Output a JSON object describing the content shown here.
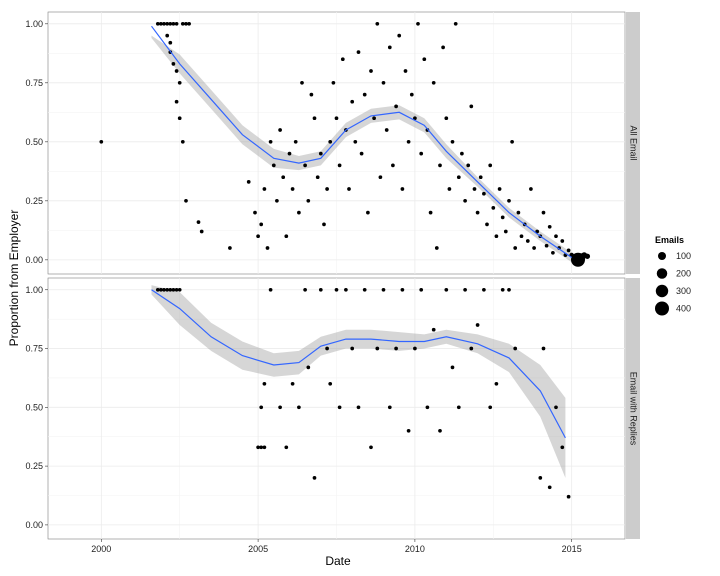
{
  "chart_data": {
    "type": "scatter",
    "xlabel": "Date",
    "ylabel": "Proportion from Employer",
    "xlim": [
      1998.3,
      2016.7
    ],
    "ylim": [
      -0.06,
      1.05
    ],
    "x_ticks": [
      2000,
      2005,
      2010,
      2015
    ],
    "x_tick_labels": [
      "2000",
      "2005",
      "2010",
      "2015"
    ],
    "y_ticks": [
      0,
      0.25,
      0.5,
      0.75,
      1.0
    ],
    "y_tick_labels": [
      "0.00",
      "0.25",
      "0.50",
      "0.75",
      "1.00"
    ],
    "grid": true,
    "colors": {
      "smooth_line": "#3366ff",
      "ribbon": "#999999",
      "point": "#000000",
      "panel_bg": "#ffffff",
      "grid": "#ebebeb",
      "strip_bg": "#cccccc"
    },
    "legend": {
      "title": "Emails",
      "position": "right",
      "entries": [
        {
          "label": "100",
          "value": 100
        },
        {
          "label": "200",
          "value": 200
        },
        {
          "label": "300",
          "value": 300
        },
        {
          "label": "400",
          "value": 400
        }
      ]
    },
    "panels": [
      {
        "strip": "All Email",
        "smooth": {
          "x": [
            2001.6,
            2002.5,
            2003.5,
            2004.5,
            2005.5,
            2006.3,
            2007.0,
            2007.8,
            2008.6,
            2009.5,
            2010.3,
            2011.0,
            2012.0,
            2013.0,
            2014.0,
            2015.0
          ],
          "y": [
            0.99,
            0.83,
            0.68,
            0.53,
            0.43,
            0.41,
            0.43,
            0.55,
            0.61,
            0.625,
            0.57,
            0.46,
            0.33,
            0.2,
            0.1,
            0.01
          ],
          "lower": [
            0.94,
            0.79,
            0.64,
            0.49,
            0.39,
            0.38,
            0.4,
            0.52,
            0.58,
            0.595,
            0.54,
            0.43,
            0.31,
            0.18,
            0.08,
            -0.01
          ],
          "upper": [
            0.95,
            0.87,
            0.72,
            0.57,
            0.47,
            0.44,
            0.46,
            0.58,
            0.64,
            0.655,
            0.6,
            0.49,
            0.35,
            0.22,
            0.12,
            0.03
          ]
        },
        "points": [
          [
            2000.0,
            0.5,
            8
          ],
          [
            2001.8,
            1.0,
            8
          ],
          [
            2001.9,
            1.0,
            8
          ],
          [
            2002.0,
            1.0,
            8
          ],
          [
            2002.1,
            1.0,
            8
          ],
          [
            2002.2,
            1.0,
            8
          ],
          [
            2002.3,
            1.0,
            8
          ],
          [
            2002.4,
            1.0,
            8
          ],
          [
            2002.6,
            1.0,
            8
          ],
          [
            2002.7,
            1.0,
            8
          ],
          [
            2002.8,
            1.0,
            8
          ],
          [
            2002.1,
            0.95,
            8
          ],
          [
            2002.2,
            0.88,
            8
          ],
          [
            2002.3,
            0.83,
            8
          ],
          [
            2002.4,
            0.8,
            8
          ],
          [
            2002.5,
            0.75,
            8
          ],
          [
            2002.2,
            0.92,
            8
          ],
          [
            2002.4,
            0.67,
            8
          ],
          [
            2002.5,
            0.6,
            8
          ],
          [
            2002.6,
            0.5,
            8
          ],
          [
            2002.7,
            0.25,
            8
          ],
          [
            2003.1,
            0.16,
            8
          ],
          [
            2003.2,
            0.12,
            8
          ],
          [
            2004.1,
            0.05,
            8
          ],
          [
            2004.7,
            0.33,
            8
          ],
          [
            2004.9,
            0.2,
            8
          ],
          [
            2005.0,
            0.1,
            8
          ],
          [
            2005.1,
            0.15,
            8
          ],
          [
            2005.2,
            0.3,
            8
          ],
          [
            2005.3,
            0.05,
            8
          ],
          [
            2005.4,
            0.5,
            8
          ],
          [
            2005.5,
            0.4,
            8
          ],
          [
            2005.6,
            0.25,
            8
          ],
          [
            2005.7,
            0.55,
            8
          ],
          [
            2005.8,
            0.35,
            8
          ],
          [
            2005.9,
            0.1,
            8
          ],
          [
            2006.0,
            0.45,
            8
          ],
          [
            2006.1,
            0.3,
            8
          ],
          [
            2006.2,
            0.5,
            8
          ],
          [
            2006.3,
            0.2,
            8
          ],
          [
            2006.4,
            0.75,
            8
          ],
          [
            2006.5,
            0.4,
            8
          ],
          [
            2006.6,
            0.25,
            8
          ],
          [
            2006.7,
            0.7,
            8
          ],
          [
            2006.8,
            0.6,
            8
          ],
          [
            2006.9,
            0.35,
            8
          ],
          [
            2007.0,
            0.45,
            8
          ],
          [
            2007.1,
            0.15,
            8
          ],
          [
            2007.2,
            0.3,
            8
          ],
          [
            2007.3,
            0.5,
            8
          ],
          [
            2007.4,
            0.75,
            8
          ],
          [
            2007.5,
            0.6,
            8
          ],
          [
            2007.6,
            0.4,
            8
          ],
          [
            2007.7,
            0.85,
            8
          ],
          [
            2007.8,
            0.55,
            8
          ],
          [
            2007.9,
            0.3,
            8
          ],
          [
            2008.0,
            0.67,
            8
          ],
          [
            2008.1,
            0.5,
            8
          ],
          [
            2008.2,
            0.88,
            8
          ],
          [
            2008.3,
            0.45,
            8
          ],
          [
            2008.4,
            0.7,
            8
          ],
          [
            2008.5,
            0.2,
            8
          ],
          [
            2008.6,
            0.8,
            8
          ],
          [
            2008.7,
            0.6,
            8
          ],
          [
            2008.8,
            1.0,
            8
          ],
          [
            2008.9,
            0.35,
            8
          ],
          [
            2009.0,
            0.75,
            8
          ],
          [
            2009.1,
            0.55,
            8
          ],
          [
            2009.2,
            0.9,
            8
          ],
          [
            2009.3,
            0.4,
            8
          ],
          [
            2009.4,
            0.65,
            8
          ],
          [
            2009.5,
            0.95,
            8
          ],
          [
            2009.6,
            0.3,
            8
          ],
          [
            2009.7,
            0.8,
            8
          ],
          [
            2009.8,
            0.5,
            8
          ],
          [
            2009.9,
            0.7,
            8
          ],
          [
            2010.0,
            0.6,
            8
          ],
          [
            2010.1,
            1.0,
            8
          ],
          [
            2010.2,
            0.45,
            8
          ],
          [
            2010.3,
            0.85,
            8
          ],
          [
            2010.4,
            0.55,
            8
          ],
          [
            2010.5,
            0.2,
            8
          ],
          [
            2010.6,
            0.75,
            8
          ],
          [
            2010.7,
            0.05,
            8
          ],
          [
            2010.8,
            0.4,
            8
          ],
          [
            2010.9,
            0.9,
            8
          ],
          [
            2011.0,
            0.6,
            8
          ],
          [
            2011.1,
            0.3,
            8
          ],
          [
            2011.2,
            0.5,
            8
          ],
          [
            2011.3,
            1.0,
            8
          ],
          [
            2011.4,
            0.35,
            8
          ],
          [
            2011.5,
            0.45,
            8
          ],
          [
            2011.6,
            0.25,
            8
          ],
          [
            2011.7,
            0.4,
            8
          ],
          [
            2011.8,
            0.65,
            8
          ],
          [
            2011.9,
            0.3,
            8
          ],
          [
            2012.0,
            0.2,
            8
          ],
          [
            2012.1,
            0.35,
            8
          ],
          [
            2012.2,
            0.28,
            8
          ],
          [
            2012.3,
            0.15,
            8
          ],
          [
            2012.4,
            0.4,
            8
          ],
          [
            2012.5,
            0.22,
            8
          ],
          [
            2012.6,
            0.1,
            8
          ],
          [
            2012.7,
            0.3,
            8
          ],
          [
            2012.8,
            0.18,
            8
          ],
          [
            2012.9,
            0.12,
            8
          ],
          [
            2013.0,
            0.25,
            8
          ],
          [
            2013.1,
            0.5,
            8
          ],
          [
            2013.2,
            0.05,
            8
          ],
          [
            2013.3,
            0.2,
            8
          ],
          [
            2013.4,
            0.1,
            8
          ],
          [
            2013.5,
            0.15,
            8
          ],
          [
            2013.6,
            0.08,
            8
          ],
          [
            2013.7,
            0.3,
            8
          ],
          [
            2013.8,
            0.05,
            8
          ],
          [
            2013.9,
            0.12,
            8
          ],
          [
            2014.0,
            0.1,
            8
          ],
          [
            2014.1,
            0.2,
            8
          ],
          [
            2014.2,
            0.06,
            8
          ],
          [
            2014.3,
            0.14,
            8
          ],
          [
            2014.4,
            0.03,
            8
          ],
          [
            2014.5,
            0.1,
            8
          ],
          [
            2014.6,
            0.05,
            8
          ],
          [
            2014.7,
            0.08,
            8
          ],
          [
            2014.8,
            0.02,
            8
          ],
          [
            2014.9,
            0.04,
            8
          ],
          [
            2015.0,
            0.02,
            20
          ],
          [
            2015.1,
            0.01,
            60
          ],
          [
            2015.2,
            0.0,
            400
          ],
          [
            2015.3,
            0.01,
            120
          ],
          [
            2015.4,
            0.02,
            40
          ],
          [
            2015.5,
            0.015,
            30
          ]
        ]
      },
      {
        "strip": "Email with Replies",
        "smooth": {
          "x": [
            2001.6,
            2002.5,
            2003.5,
            2004.5,
            2005.5,
            2006.3,
            2007.0,
            2007.8,
            2008.6,
            2009.5,
            2010.3,
            2011.0,
            2012.0,
            2013.0,
            2014.0,
            2014.8
          ],
          "y": [
            1.0,
            0.92,
            0.8,
            0.72,
            0.68,
            0.69,
            0.76,
            0.79,
            0.79,
            0.78,
            0.78,
            0.8,
            0.77,
            0.71,
            0.57,
            0.37
          ],
          "lower": [
            0.98,
            0.85,
            0.74,
            0.66,
            0.63,
            0.64,
            0.72,
            0.75,
            0.75,
            0.74,
            0.75,
            0.77,
            0.73,
            0.65,
            0.46,
            0.2
          ],
          "upper": [
            1.02,
            0.99,
            0.86,
            0.78,
            0.73,
            0.74,
            0.8,
            0.83,
            0.83,
            0.82,
            0.81,
            0.83,
            0.81,
            0.77,
            0.68,
            0.54
          ]
        },
        "points": [
          [
            2001.8,
            1.0,
            8
          ],
          [
            2001.9,
            1.0,
            8
          ],
          [
            2002.0,
            1.0,
            8
          ],
          [
            2002.1,
            1.0,
            8
          ],
          [
            2002.2,
            1.0,
            8
          ],
          [
            2002.3,
            1.0,
            8
          ],
          [
            2002.4,
            1.0,
            8
          ],
          [
            2002.5,
            1.0,
            8
          ],
          [
            2005.0,
            0.33,
            8
          ],
          [
            2005.1,
            0.33,
            8
          ],
          [
            2005.2,
            0.33,
            8
          ],
          [
            2005.1,
            0.5,
            8
          ],
          [
            2005.2,
            0.6,
            8
          ],
          [
            2005.4,
            1.0,
            8
          ],
          [
            2005.7,
            0.5,
            8
          ],
          [
            2005.9,
            0.33,
            8
          ],
          [
            2006.1,
            0.6,
            8
          ],
          [
            2006.3,
            0.5,
            8
          ],
          [
            2006.5,
            1.0,
            8
          ],
          [
            2006.6,
            0.67,
            8
          ],
          [
            2006.8,
            0.2,
            8
          ],
          [
            2007.0,
            1.0,
            8
          ],
          [
            2007.2,
            0.75,
            8
          ],
          [
            2007.3,
            0.6,
            8
          ],
          [
            2007.5,
            1.0,
            8
          ],
          [
            2007.6,
            0.5,
            8
          ],
          [
            2007.8,
            1.0,
            8
          ],
          [
            2008.0,
            0.75,
            8
          ],
          [
            2008.2,
            0.5,
            8
          ],
          [
            2008.4,
            1.0,
            8
          ],
          [
            2008.6,
            0.33,
            8
          ],
          [
            2008.8,
            0.75,
            8
          ],
          [
            2009.0,
            1.0,
            8
          ],
          [
            2009.2,
            0.5,
            8
          ],
          [
            2009.4,
            0.75,
            8
          ],
          [
            2009.6,
            1.0,
            8
          ],
          [
            2009.8,
            0.4,
            8
          ],
          [
            2010.0,
            0.75,
            8
          ],
          [
            2010.2,
            1.0,
            8
          ],
          [
            2010.4,
            0.5,
            8
          ],
          [
            2010.6,
            0.83,
            8
          ],
          [
            2010.8,
            0.4,
            8
          ],
          [
            2011.0,
            1.0,
            8
          ],
          [
            2011.2,
            0.67,
            8
          ],
          [
            2011.4,
            0.5,
            8
          ],
          [
            2011.6,
            1.0,
            8
          ],
          [
            2011.8,
            0.75,
            8
          ],
          [
            2012.0,
            0.85,
            8
          ],
          [
            2012.2,
            1.0,
            8
          ],
          [
            2012.4,
            0.5,
            8
          ],
          [
            2012.6,
            0.6,
            8
          ],
          [
            2012.8,
            1.0,
            8
          ],
          [
            2013.0,
            1.0,
            8
          ],
          [
            2013.2,
            0.75,
            8
          ],
          [
            2014.0,
            0.2,
            8
          ],
          [
            2014.1,
            0.75,
            8
          ],
          [
            2014.3,
            0.16,
            8
          ],
          [
            2014.5,
            0.5,
            8
          ],
          [
            2014.7,
            0.33,
            8
          ],
          [
            2014.9,
            0.12,
            8
          ]
        ]
      }
    ]
  }
}
